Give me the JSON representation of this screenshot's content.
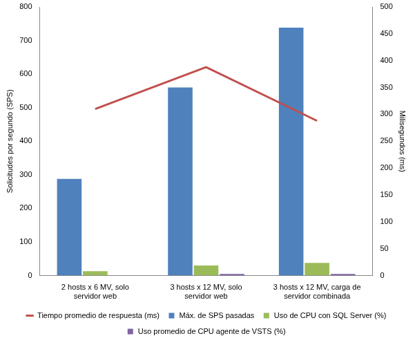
{
  "chart_data": {
    "type": "bar",
    "categories": [
      "2 hosts x 6 MV, solo servidor web",
      "3 hosts x 12 MV, solo servidor web",
      "3 hosts x 12 MV, carga de servidor combinada"
    ],
    "series": [
      {
        "name": "Máx. de SPS pasadas",
        "color": "#4f81bd",
        "values": [
          288,
          560,
          738
        ]
      },
      {
        "name": "Uso de CPU con SQL Server (%)",
        "color": "#9bbb59",
        "values": [
          13,
          30,
          38
        ]
      },
      {
        "name": "Uso promedio de CPU agente de VSTS (%)",
        "color": "#8064a2",
        "values": [
          null,
          5,
          5
        ]
      },
      {
        "name": "Tiempo promedio de respuesta (ms)",
        "color": "#c0504d",
        "values": [
          310,
          388,
          288
        ],
        "type": "line",
        "axis": "y2",
        "marker": "none"
      }
    ],
    "ylabel": "Solicitudes por segundo (SPS)",
    "y2label": "Milisegundos (ms)",
    "ylim": [
      0,
      800
    ],
    "yticks": [
      0,
      100,
      200,
      300,
      400,
      500,
      600,
      700,
      800
    ],
    "y2lim": [
      0,
      500
    ],
    "y2ticks": [
      0,
      50,
      100,
      150,
      200,
      250,
      300,
      350,
      400,
      450,
      500
    ],
    "grid": false,
    "legend": "bottom"
  }
}
